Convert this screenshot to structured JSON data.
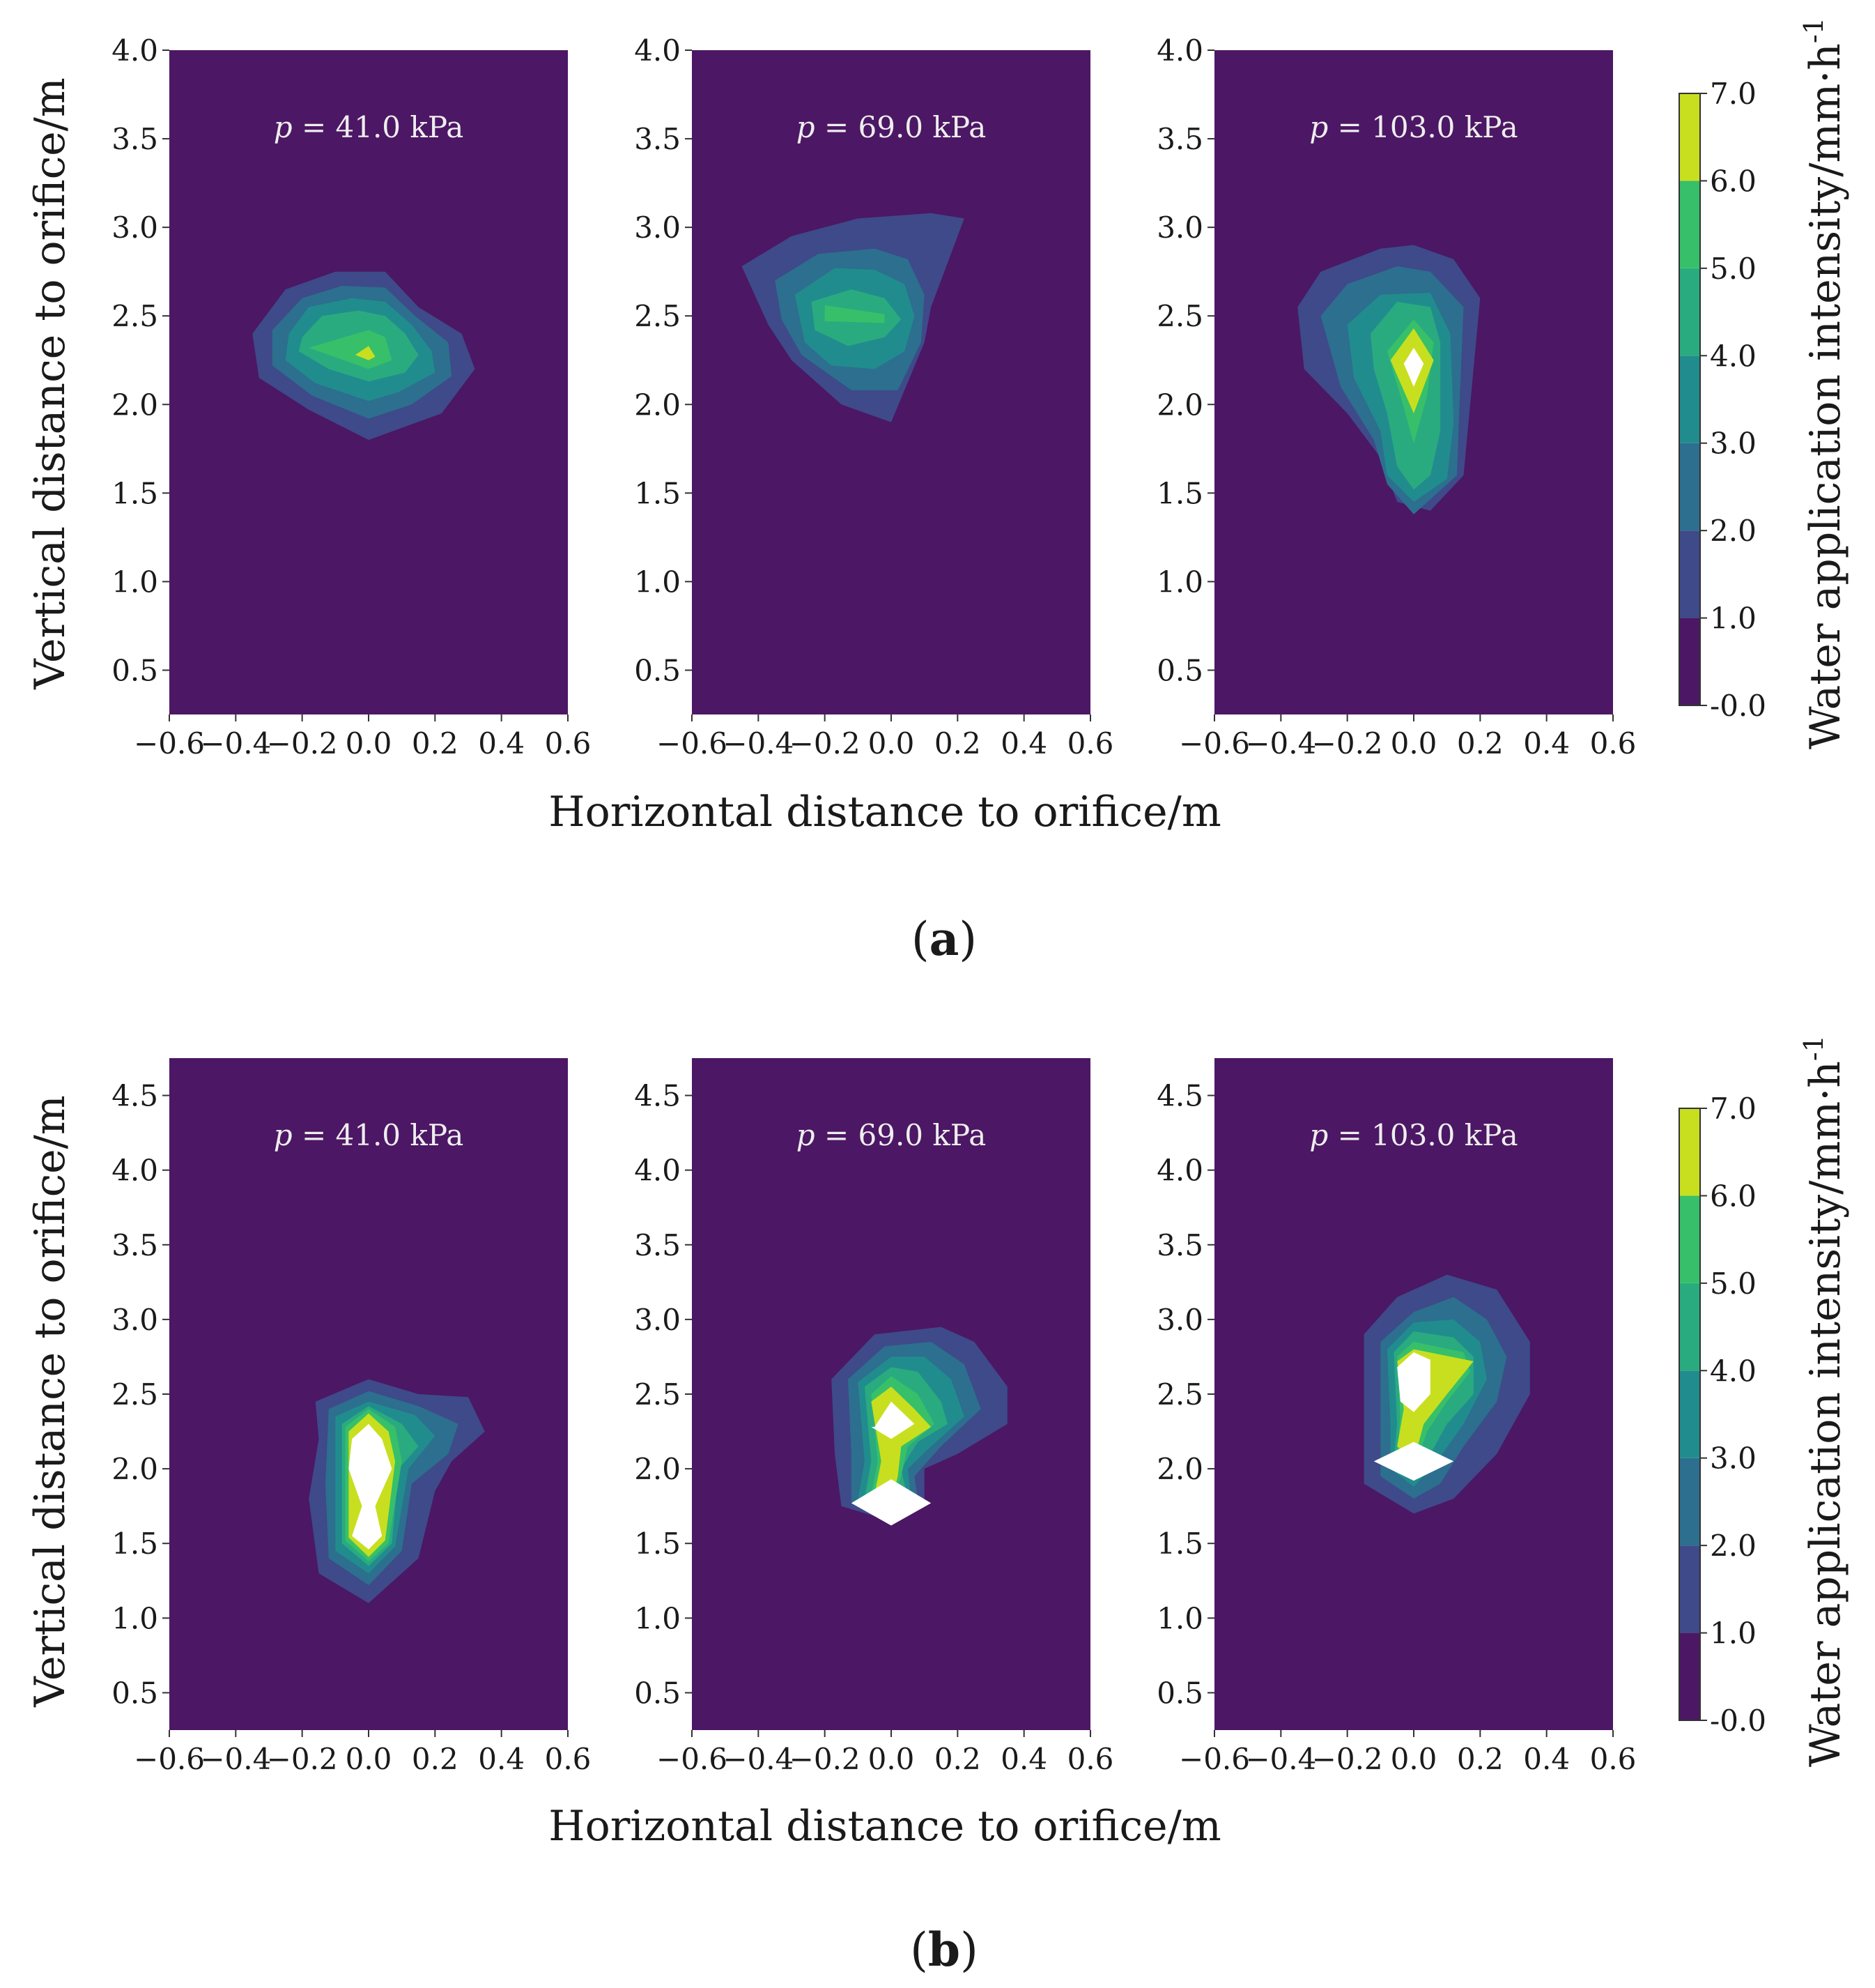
{
  "figure": {
    "shared_xlabel": "Horizontal distance to orifice/m",
    "shared_ylabel": "Vertical distance to orifice/m",
    "colorbar": {
      "label": "Water application intensity/mm·h",
      "label_superscript": "-1",
      "ticks": [
        "-0.0",
        "1.0",
        "2.0",
        "3.0",
        "4.0",
        "5.0",
        "6.0",
        "7.0"
      ],
      "levels": [
        0,
        1,
        2,
        3,
        4,
        5,
        6,
        7
      ],
      "colors": [
        "#4c1764",
        "#3e4a89",
        "#2d6f8e",
        "#218c8d",
        "#2aab7f",
        "#37c069",
        "#c8df1f",
        "#ffffff"
      ]
    }
  },
  "chart_data": [
    {
      "type": "contour",
      "group": "(a)",
      "subplots": [
        {
          "pressure_kPa": "41.0",
          "x_range": [
            -0.6,
            0.6
          ],
          "y_range": [
            0.25,
            4.0
          ],
          "peak": {
            "x": 0.0,
            "y": 2.27,
            "level": 6
          }
        },
        {
          "pressure_kPa": "69.0",
          "x_range": [
            -0.6,
            0.6
          ],
          "y_range": [
            0.25,
            4.0
          ],
          "peak": {
            "x": -0.1,
            "y": 2.5,
            "level": 4
          }
        },
        {
          "pressure_kPa": "103.0",
          "x_range": [
            -0.6,
            0.6
          ],
          "y_range": [
            0.25,
            4.0
          ],
          "peak": {
            "x": 0.0,
            "y": 2.25,
            "level": 7
          }
        }
      ],
      "x_ticks": [
        "−0.6",
        "−0.4",
        "−0.2",
        "0.0",
        "0.2",
        "0.4",
        "0.6"
      ],
      "y_ticks": [
        "0.5",
        "1.0",
        "1.5",
        "2.0",
        "2.5",
        "3.0",
        "3.5",
        "4.0"
      ],
      "xlabel": "Horizontal distance to orifice/m",
      "ylabel": "Vertical distance to orifice/m",
      "colorbar_range": [
        0,
        7
      ]
    },
    {
      "type": "contour",
      "group": "(b)",
      "subplots": [
        {
          "pressure_kPa": "41.0",
          "x_range": [
            -0.6,
            0.6
          ],
          "y_range": [
            0.25,
            4.75
          ],
          "peak": {
            "x": 0.0,
            "y": 1.85,
            "level": 7
          }
        },
        {
          "pressure_kPa": "69.0",
          "x_range": [
            -0.6,
            0.6
          ],
          "y_range": [
            0.25,
            4.75
          ],
          "peak": {
            "x": 0.0,
            "y": 1.75,
            "level": 7
          }
        },
        {
          "pressure_kPa": "103.0",
          "x_range": [
            -0.6,
            0.6
          ],
          "y_range": [
            0.25,
            4.75
          ],
          "peak": {
            "x": 0.0,
            "y": 2.05,
            "level": 7
          }
        }
      ],
      "x_ticks": [
        "−0.6",
        "−0.4",
        "−0.2",
        "0.0",
        "0.2",
        "0.4",
        "0.6"
      ],
      "y_ticks": [
        "0.5",
        "1.0",
        "1.5",
        "2.0",
        "2.5",
        "3.0",
        "3.5",
        "4.0",
        "4.5"
      ],
      "xlabel": "Horizontal distance to orifice/m",
      "ylabel": "Vertical distance to orifice/m",
      "colorbar_range": [
        0,
        7
      ]
    }
  ],
  "pressure_prefix": "p",
  "pressure_unit": "kPa",
  "panel_labels": [
    "a",
    "b"
  ]
}
